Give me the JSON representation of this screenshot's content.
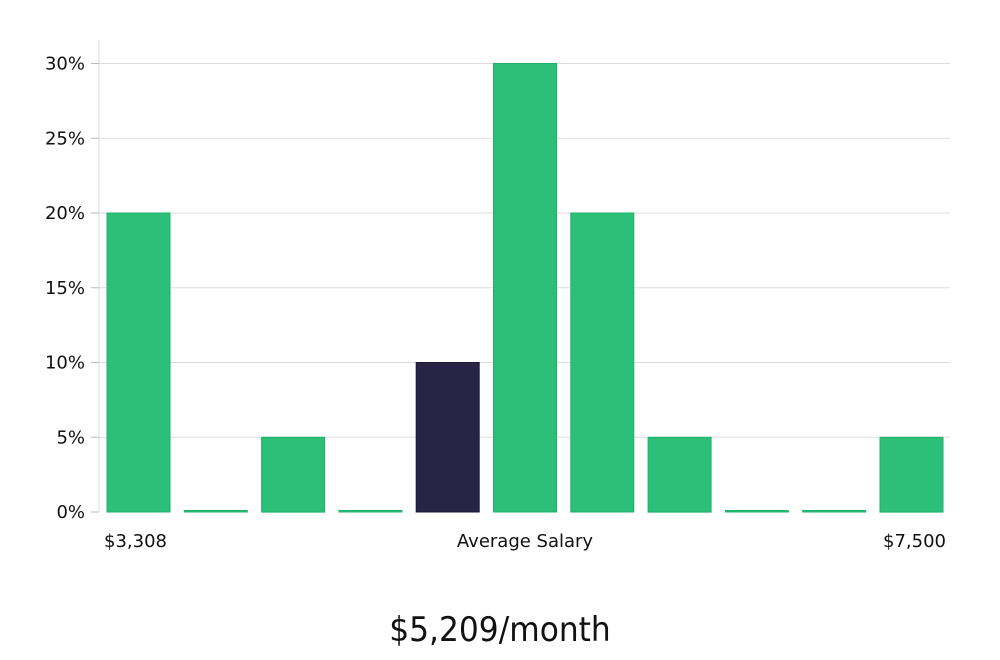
{
  "chart_data": {
    "type": "bar",
    "values": [
      20,
      0,
      5,
      0,
      10,
      30,
      20,
      5,
      0,
      0,
      5
    ],
    "highlight_index": 4,
    "ylim": [
      0,
      31.5
    ],
    "yticks": [
      0,
      5,
      10,
      15,
      20,
      25,
      30
    ],
    "ytick_labels": [
      "0%",
      "5%",
      "10%",
      "15%",
      "20%",
      "25%",
      "30%"
    ],
    "grid": true,
    "x_min_label": "$3,308",
    "x_center_label": "Average Salary",
    "x_max_label": "$7,500",
    "colors": {
      "bar": "#2bbf78",
      "bar_edge": "#1fb26c",
      "highlight": "#272446",
      "grid": "#dddddd"
    }
  },
  "summary": {
    "amount": "$5,209/month"
  }
}
